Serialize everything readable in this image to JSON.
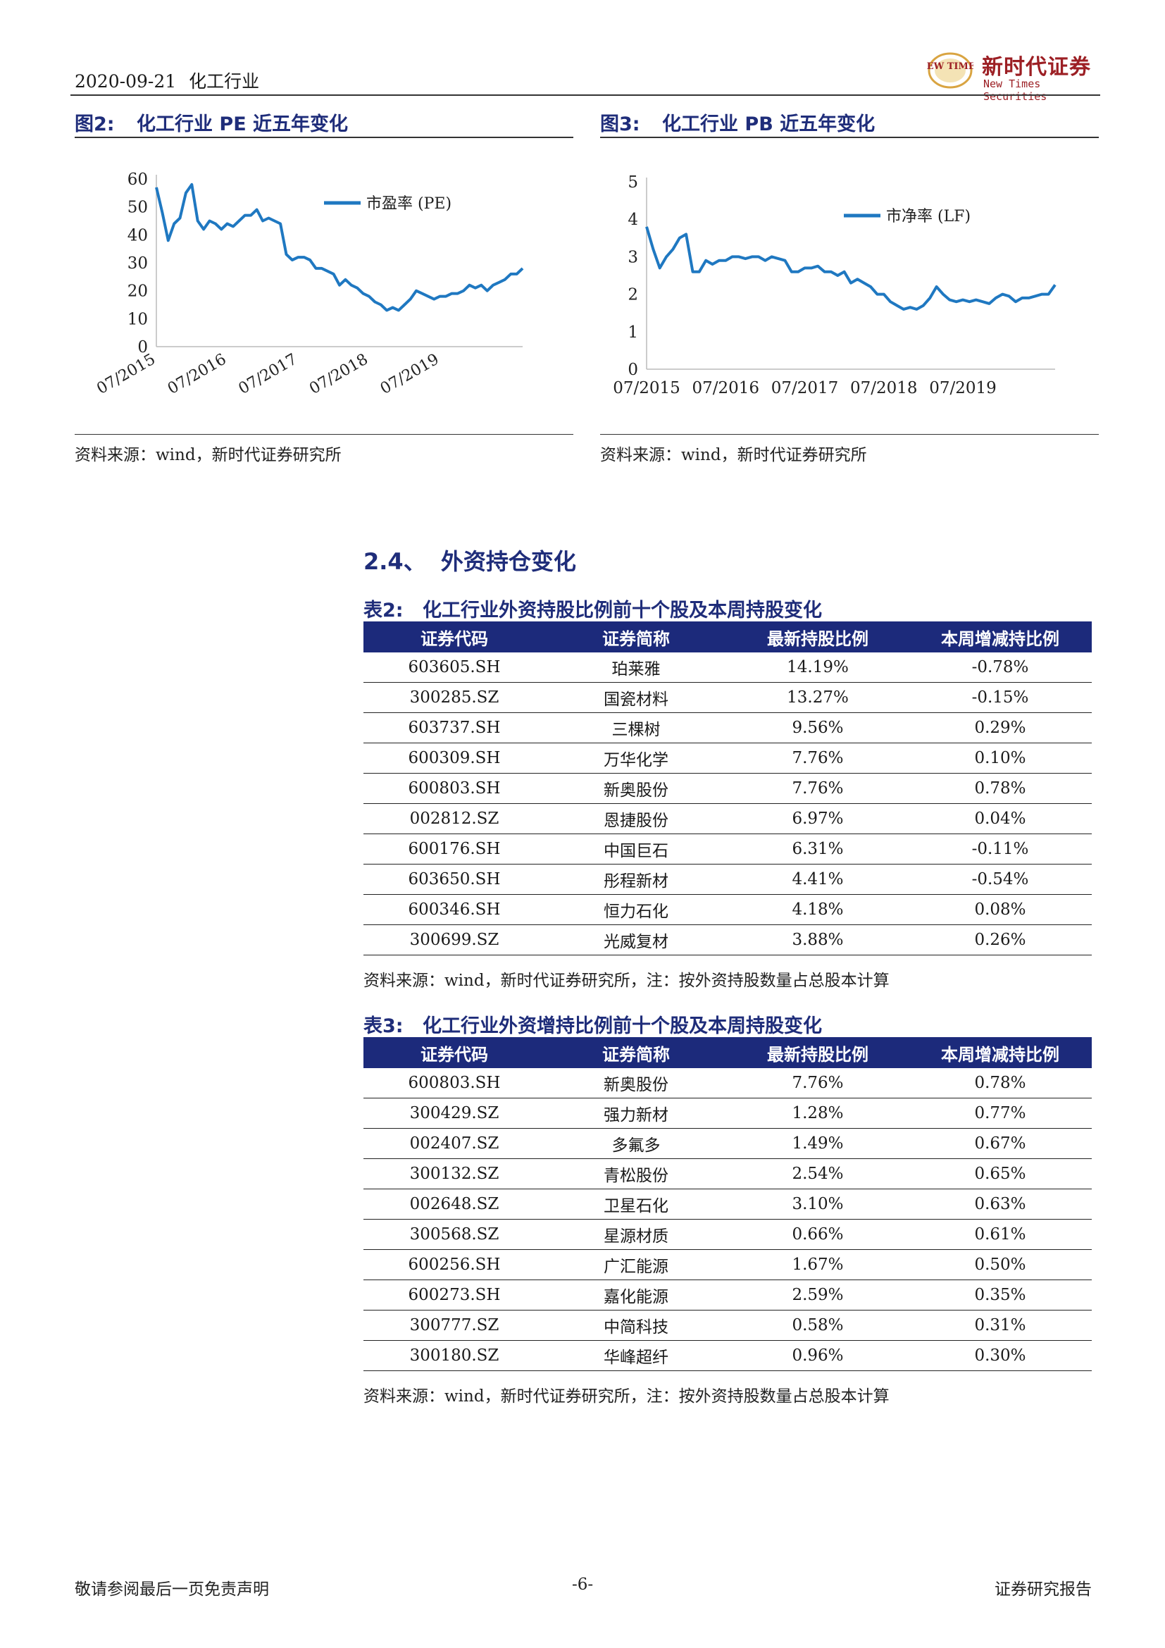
{
  "header": {
    "date": "2020-09-21",
    "industry": "化工行业",
    "logo_mark": "NEW TIMES",
    "logo_cn": "新时代证券",
    "logo_en": "New Times Securities"
  },
  "figures": [
    {
      "label": "图2:",
      "title": "化工行业 PE 近五年变化",
      "source": "资料来源：wind，新时代证券研究所"
    },
    {
      "label": "图3:",
      "title": "化工行业 PB 近五年变化",
      "source": "资料来源：wind，新时代证券研究所"
    }
  ],
  "chart_data": [
    {
      "type": "line",
      "title": "化工行业 PE 近五年变化",
      "x_ticks": [
        "07/2015",
        "07/2016",
        "07/2017",
        "07/2018",
        "07/2019"
      ],
      "y_ticks": [
        0,
        10,
        20,
        30,
        40,
        50,
        60
      ],
      "ylim": [
        0,
        60
      ],
      "legend": "top-center",
      "grid": false,
      "series": [
        {
          "name": "市盈率 (PE)",
          "color": "#1f78c1",
          "points": [
            [
              "2015-07",
              57
            ],
            [
              "2015-08",
              48
            ],
            [
              "2015-09",
              38
            ],
            [
              "2015-10",
              44
            ],
            [
              "2015-11",
              46
            ],
            [
              "2015-12",
              55
            ],
            [
              "2016-01",
              58
            ],
            [
              "2016-02",
              45
            ],
            [
              "2016-03",
              42
            ],
            [
              "2016-04",
              45
            ],
            [
              "2016-05",
              44
            ],
            [
              "2016-06",
              42
            ],
            [
              "2016-07",
              44
            ],
            [
              "2016-08",
              43
            ],
            [
              "2016-09",
              45
            ],
            [
              "2016-10",
              47
            ],
            [
              "2016-11",
              47
            ],
            [
              "2016-12",
              49
            ],
            [
              "2017-01",
              45
            ],
            [
              "2017-02",
              46
            ],
            [
              "2017-03",
              45
            ],
            [
              "2017-04",
              44
            ],
            [
              "2017-05",
              33
            ],
            [
              "2017-06",
              31
            ],
            [
              "2017-07",
              32
            ],
            [
              "2017-08",
              32
            ],
            [
              "2017-09",
              31
            ],
            [
              "2017-10",
              28
            ],
            [
              "2017-11",
              28
            ],
            [
              "2017-12",
              27
            ],
            [
              "2018-01",
              26
            ],
            [
              "2018-02",
              22
            ],
            [
              "2018-03",
              24
            ],
            [
              "2018-04",
              22
            ],
            [
              "2018-05",
              21
            ],
            [
              "2018-06",
              19
            ],
            [
              "2018-07",
              18
            ],
            [
              "2018-08",
              16
            ],
            [
              "2018-09",
              15
            ],
            [
              "2018-10",
              13
            ],
            [
              "2018-11",
              14
            ],
            [
              "2018-12",
              13
            ],
            [
              "2019-01",
              15
            ],
            [
              "2019-02",
              17
            ],
            [
              "2019-03",
              20
            ],
            [
              "2019-04",
              19
            ],
            [
              "2019-05",
              18
            ],
            [
              "2019-06",
              17
            ],
            [
              "2019-07",
              18
            ],
            [
              "2019-08",
              18
            ],
            [
              "2019-09",
              19
            ],
            [
              "2019-10",
              19
            ],
            [
              "2019-11",
              20
            ],
            [
              "2019-12",
              22
            ],
            [
              "2020-01",
              21
            ],
            [
              "2020-02",
              22
            ],
            [
              "2020-03",
              20
            ],
            [
              "2020-04",
              22
            ],
            [
              "2020-05",
              23
            ],
            [
              "2020-06",
              24
            ],
            [
              "2020-07",
              26
            ],
            [
              "2020-08",
              26
            ],
            [
              "2020-09",
              28
            ]
          ]
        }
      ]
    },
    {
      "type": "line",
      "title": "化工行业 PB 近五年变化",
      "x_ticks": [
        "07/2015",
        "07/2016",
        "07/2017",
        "07/2018",
        "07/2019"
      ],
      "y_ticks": [
        0,
        1,
        2,
        3,
        4,
        5
      ],
      "ylim": [
        0,
        5
      ],
      "legend": "top-center",
      "grid": false,
      "series": [
        {
          "name": "市净率 (LF)",
          "color": "#1f78c1",
          "points": [
            [
              "2015-07",
              3.8
            ],
            [
              "2015-08",
              3.2
            ],
            [
              "2015-09",
              2.7
            ],
            [
              "2015-10",
              3.0
            ],
            [
              "2015-11",
              3.2
            ],
            [
              "2015-12",
              3.5
            ],
            [
              "2016-01",
              3.6
            ],
            [
              "2016-02",
              2.6
            ],
            [
              "2016-03",
              2.6
            ],
            [
              "2016-04",
              2.9
            ],
            [
              "2016-05",
              2.8
            ],
            [
              "2016-06",
              2.9
            ],
            [
              "2016-07",
              2.9
            ],
            [
              "2016-08",
              3.0
            ],
            [
              "2016-09",
              3.0
            ],
            [
              "2016-10",
              2.95
            ],
            [
              "2016-11",
              3.0
            ],
            [
              "2016-12",
              3.0
            ],
            [
              "2017-01",
              2.9
            ],
            [
              "2017-02",
              3.0
            ],
            [
              "2017-03",
              2.95
            ],
            [
              "2017-04",
              2.9
            ],
            [
              "2017-05",
              2.6
            ],
            [
              "2017-06",
              2.6
            ],
            [
              "2017-07",
              2.7
            ],
            [
              "2017-08",
              2.7
            ],
            [
              "2017-09",
              2.75
            ],
            [
              "2017-10",
              2.6
            ],
            [
              "2017-11",
              2.6
            ],
            [
              "2017-12",
              2.5
            ],
            [
              "2018-01",
              2.6
            ],
            [
              "2018-02",
              2.3
            ],
            [
              "2018-03",
              2.4
            ],
            [
              "2018-04",
              2.3
            ],
            [
              "2018-05",
              2.2
            ],
            [
              "2018-06",
              2.0
            ],
            [
              "2018-07",
              2.0
            ],
            [
              "2018-08",
              1.8
            ],
            [
              "2018-09",
              1.7
            ],
            [
              "2018-10",
              1.6
            ],
            [
              "2018-11",
              1.65
            ],
            [
              "2018-12",
              1.6
            ],
            [
              "2019-01",
              1.7
            ],
            [
              "2019-02",
              1.9
            ],
            [
              "2019-03",
              2.2
            ],
            [
              "2019-04",
              2.0
            ],
            [
              "2019-05",
              1.85
            ],
            [
              "2019-06",
              1.8
            ],
            [
              "2019-07",
              1.85
            ],
            [
              "2019-08",
              1.8
            ],
            [
              "2019-09",
              1.85
            ],
            [
              "2019-10",
              1.8
            ],
            [
              "2019-11",
              1.75
            ],
            [
              "2019-12",
              1.9
            ],
            [
              "2020-01",
              2.0
            ],
            [
              "2020-02",
              1.95
            ],
            [
              "2020-03",
              1.8
            ],
            [
              "2020-04",
              1.9
            ],
            [
              "2020-05",
              1.9
            ],
            [
              "2020-06",
              1.95
            ],
            [
              "2020-07",
              2.0
            ],
            [
              "2020-08",
              2.0
            ],
            [
              "2020-09",
              2.25
            ]
          ]
        }
      ]
    }
  ],
  "section": {
    "number": "2.4、",
    "title": "外资持仓变化"
  },
  "tables": [
    {
      "label": "表2:",
      "title": "化工行业外资持股比例前十个股及本周持股变化",
      "headers": [
        "证券代码",
        "证券简称",
        "最新持股比例",
        "本周增减持比例"
      ],
      "rows": [
        [
          "603605.SH",
          "珀莱雅",
          "14.19%",
          "-0.78%"
        ],
        [
          "300285.SZ",
          "国瓷材料",
          "13.27%",
          "-0.15%"
        ],
        [
          "603737.SH",
          "三棵树",
          "9.56%",
          "0.29%"
        ],
        [
          "600309.SH",
          "万华化学",
          "7.76%",
          "0.10%"
        ],
        [
          "600803.SH",
          "新奥股份",
          "7.76%",
          "0.78%"
        ],
        [
          "002812.SZ",
          "恩捷股份",
          "6.97%",
          "0.04%"
        ],
        [
          "600176.SH",
          "中国巨石",
          "6.31%",
          "-0.11%"
        ],
        [
          "603650.SH",
          "彤程新材",
          "4.41%",
          "-0.54%"
        ],
        [
          "600346.SH",
          "恒力石化",
          "4.18%",
          "0.08%"
        ],
        [
          "300699.SZ",
          "光威复材",
          "3.88%",
          "0.26%"
        ]
      ],
      "source": "资料来源：wind，新时代证券研究所，注：按外资持股数量占总股本计算"
    },
    {
      "label": "表3:",
      "title": "化工行业外资增持比例前十个股及本周持股变化",
      "headers": [
        "证券代码",
        "证券简称",
        "最新持股比例",
        "本周增减持比例"
      ],
      "rows": [
        [
          "600803.SH",
          "新奥股份",
          "7.76%",
          "0.78%"
        ],
        [
          "300429.SZ",
          "强力新材",
          "1.28%",
          "0.77%"
        ],
        [
          "002407.SZ",
          "多氟多",
          "1.49%",
          "0.67%"
        ],
        [
          "300132.SZ",
          "青松股份",
          "2.54%",
          "0.65%"
        ],
        [
          "002648.SZ",
          "卫星石化",
          "3.10%",
          "0.63%"
        ],
        [
          "300568.SZ",
          "星源材质",
          "0.66%",
          "0.61%"
        ],
        [
          "600256.SH",
          "广汇能源",
          "1.67%",
          "0.50%"
        ],
        [
          "600273.SH",
          "嘉化能源",
          "2.59%",
          "0.35%"
        ],
        [
          "300777.SZ",
          "中简科技",
          "0.58%",
          "0.31%"
        ],
        [
          "300180.SZ",
          "华峰超纤",
          "0.96%",
          "0.30%"
        ]
      ],
      "source": "资料来源：wind，新时代证券研究所，注：按外资持股数量占总股本计算"
    }
  ],
  "footer": {
    "left": "敬请参阅最后一页免责声明",
    "page": "-6-",
    "right": "证券研究报告"
  },
  "colors": {
    "accent": "#1c2a7b",
    "line": "#1f78c1",
    "brand": "#9c1f24"
  }
}
